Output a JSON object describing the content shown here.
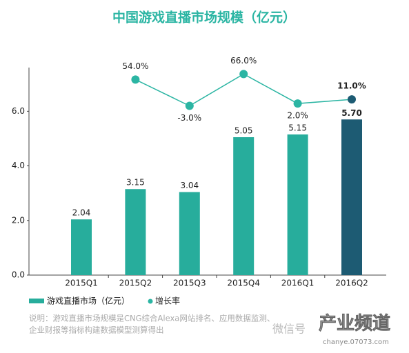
{
  "chart_data": {
    "type": "bar",
    "title": "中国游戏直播市场规模（亿元）",
    "categories": [
      "2015Q1",
      "2015Q2",
      "2015Q3",
      "2015Q4",
      "2016Q1",
      "2016Q2"
    ],
    "ylim": [
      0,
      7.6
    ],
    "yticks": [
      {
        "value": 0,
        "label": "0.0"
      },
      {
        "value": 2,
        "label": "2.0"
      },
      {
        "value": 4,
        "label": "4.0"
      },
      {
        "value": 6,
        "label": "6.0"
      }
    ],
    "y2lim": [
      -370,
      80
    ],
    "series": [
      {
        "name": "游戏直播市场（亿元）",
        "type": "bar",
        "color": "#27ad9c",
        "colors": [
          "#27ad9c",
          "#27ad9c",
          "#27ad9c",
          "#27ad9c",
          "#27ad9c",
          "#1d5b73"
        ],
        "values": [
          2.04,
          3.15,
          3.04,
          5.05,
          5.15,
          5.7
        ],
        "value_labels": [
          "2.04",
          "3.15",
          "3.04",
          "5.05",
          "5.15",
          "5.70"
        ]
      },
      {
        "name": "增长率",
        "type": "line",
        "axis": "y2",
        "color": "#2bb5a3",
        "marker_colors": [
          null,
          "#2bb5a3",
          "#2bb5a3",
          "#2bb5a3",
          "#2bb5a3",
          "#1d5b73"
        ],
        "values": [
          null,
          54.0,
          -3.0,
          66.0,
          2.0,
          11.0
        ],
        "value_labels": [
          null,
          "54.0%",
          "-3.0%",
          "66.0%",
          "2.0%",
          "11.0%"
        ]
      }
    ],
    "note": [
      "说明：游戏直播市场规模是CNG综合Alexa网站排名、应用数据监测、",
      "企业财报等指标构建数据模型测算得出"
    ],
    "watermark": [
      "微信号",
      "产业频道",
      "chanye.07073.com"
    ]
  }
}
